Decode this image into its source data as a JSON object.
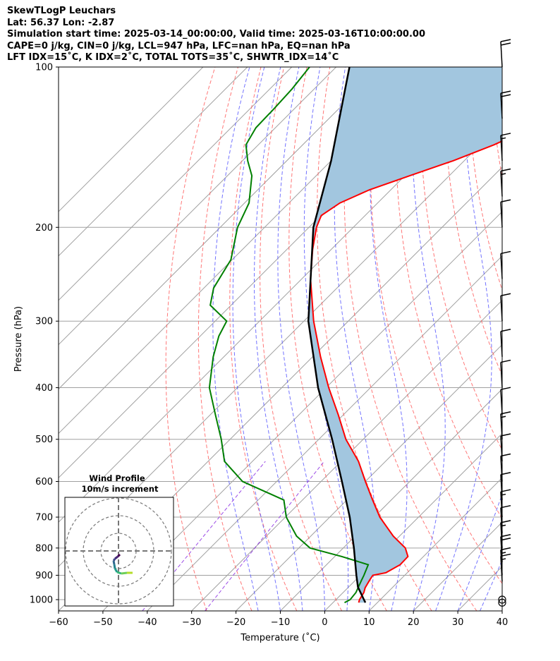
{
  "header": {
    "line1": "SkewTLogP Leuchars",
    "line2": "Lat: 56.37   Lon: -2.87",
    "line3": "Simulation start time: 2025-03-14_00:00:00, Valid time: 2025-03-16T10:00:00.00",
    "line4": "CAPE=0 j/kg, CIN=0 j/kg, LCL=947 hPa, LFC=nan hPa, EQ=nan hPa",
    "line5": "LFT IDX=15˚C, K IDX=2˚C, TOTAL TOTS=35˚C, SHWTR_IDX=14˚C"
  },
  "chart_data": {
    "type": "skewt-logp",
    "xlabel": "Temperature (˚C)",
    "ylabel": "Pressure (hPa)",
    "xlim": [
      -60,
      40
    ],
    "ylim_pressure": [
      1050,
      100
    ],
    "skew": "45 deg",
    "x_ticks": [
      "−60",
      "−50",
      "−40",
      "−30",
      "−20",
      "−10",
      "0",
      "10",
      "20",
      "30",
      "40"
    ],
    "y_ticks": [
      "100",
      "200",
      "300",
      "400",
      "500",
      "600",
      "700",
      "800",
      "900",
      "1000"
    ],
    "grid": true,
    "colors": {
      "temperature": "#ff0000",
      "dewpoint": "#008000",
      "parcel": "#000000",
      "shading": "#a2c6df",
      "dry_adiabats": "#ff5f5f",
      "moist_adiabats": "#5a5aff",
      "mixing_ratio": "#8a2be2",
      "isotherms": "#a0a0a0"
    },
    "temperature": {
      "pressure": [
        1013,
        1000,
        970,
        950,
        920,
        900,
        890,
        860,
        830,
        800,
        760,
        700,
        650,
        600,
        550,
        500,
        450,
        400,
        350,
        300,
        250,
        220,
        200,
        190,
        180,
        170,
        160,
        150,
        140,
        130,
        120,
        110,
        100
      ],
      "temp_c": [
        5.8,
        5.3,
        4.7,
        3.9,
        3.2,
        2.8,
        5.2,
        6.6,
        6.5,
        4.0,
        -1.4,
        -8.7,
        -14.2,
        -20.0,
        -26.1,
        -33.9,
        -41.1,
        -49.4,
        -58.2,
        -67.8,
        -78.0,
        -84.2,
        -88.3,
        -89.9,
        -88.5,
        -84.8,
        -78.9,
        -72.5,
        -66.9,
        -62.2,
        -58.3,
        -55.6,
        -54.1
      ]
    },
    "dewpoint": {
      "pressure": [
        1013,
        1000,
        970,
        950,
        920,
        900,
        860,
        830,
        800,
        760,
        700,
        650,
        600,
        550,
        500,
        450,
        400,
        350,
        320,
        300,
        280,
        260,
        230,
        200,
        180,
        160,
        150,
        140,
        130,
        120,
        110,
        100
      ],
      "dewpoint_c": [
        2.6,
        3.2,
        2.9,
        2.3,
        1.4,
        0.8,
        -0.6,
        -8.4,
        -17.5,
        -23.2,
        -29.8,
        -34.2,
        -47.7,
        -56.3,
        -62.0,
        -68.8,
        -76.3,
        -82.4,
        -85.8,
        -87.4,
        -94.7,
        -97.8,
        -100.3,
        -106.1,
        -109.0,
        -114.5,
        -118.8,
        -122.8,
        -124.4,
        -124.6,
        -125.0,
        -126.0
      ]
    },
    "parcel": {
      "pressure": [
        1013,
        1000,
        947,
        900,
        800,
        700,
        600,
        500,
        400,
        300,
        200,
        150,
        100
      ],
      "temp_c": [
        7.3,
        6.3,
        2.1,
        -0.9,
        -7.6,
        -15.5,
        -25.3,
        -37.0,
        -51.8,
        -69.0,
        -89.0,
        -100.0,
        -117.0
      ]
    },
    "wind_barbs": {
      "pressure": [
        1013,
        1000,
        925,
        900,
        850,
        800,
        750,
        700,
        650,
        600,
        550,
        500,
        450,
        400,
        350,
        300,
        250,
        200,
        175,
        150,
        125,
        100
      ],
      "speed_kt": [
        0,
        0,
        15,
        15,
        20,
        15,
        10,
        15,
        10,
        10,
        10,
        15,
        10,
        10,
        10,
        10,
        10,
        10,
        15,
        15,
        20,
        20
      ]
    },
    "inset": {
      "title": "Wind Profile",
      "subtitle": "10m/s increment"
    }
  }
}
